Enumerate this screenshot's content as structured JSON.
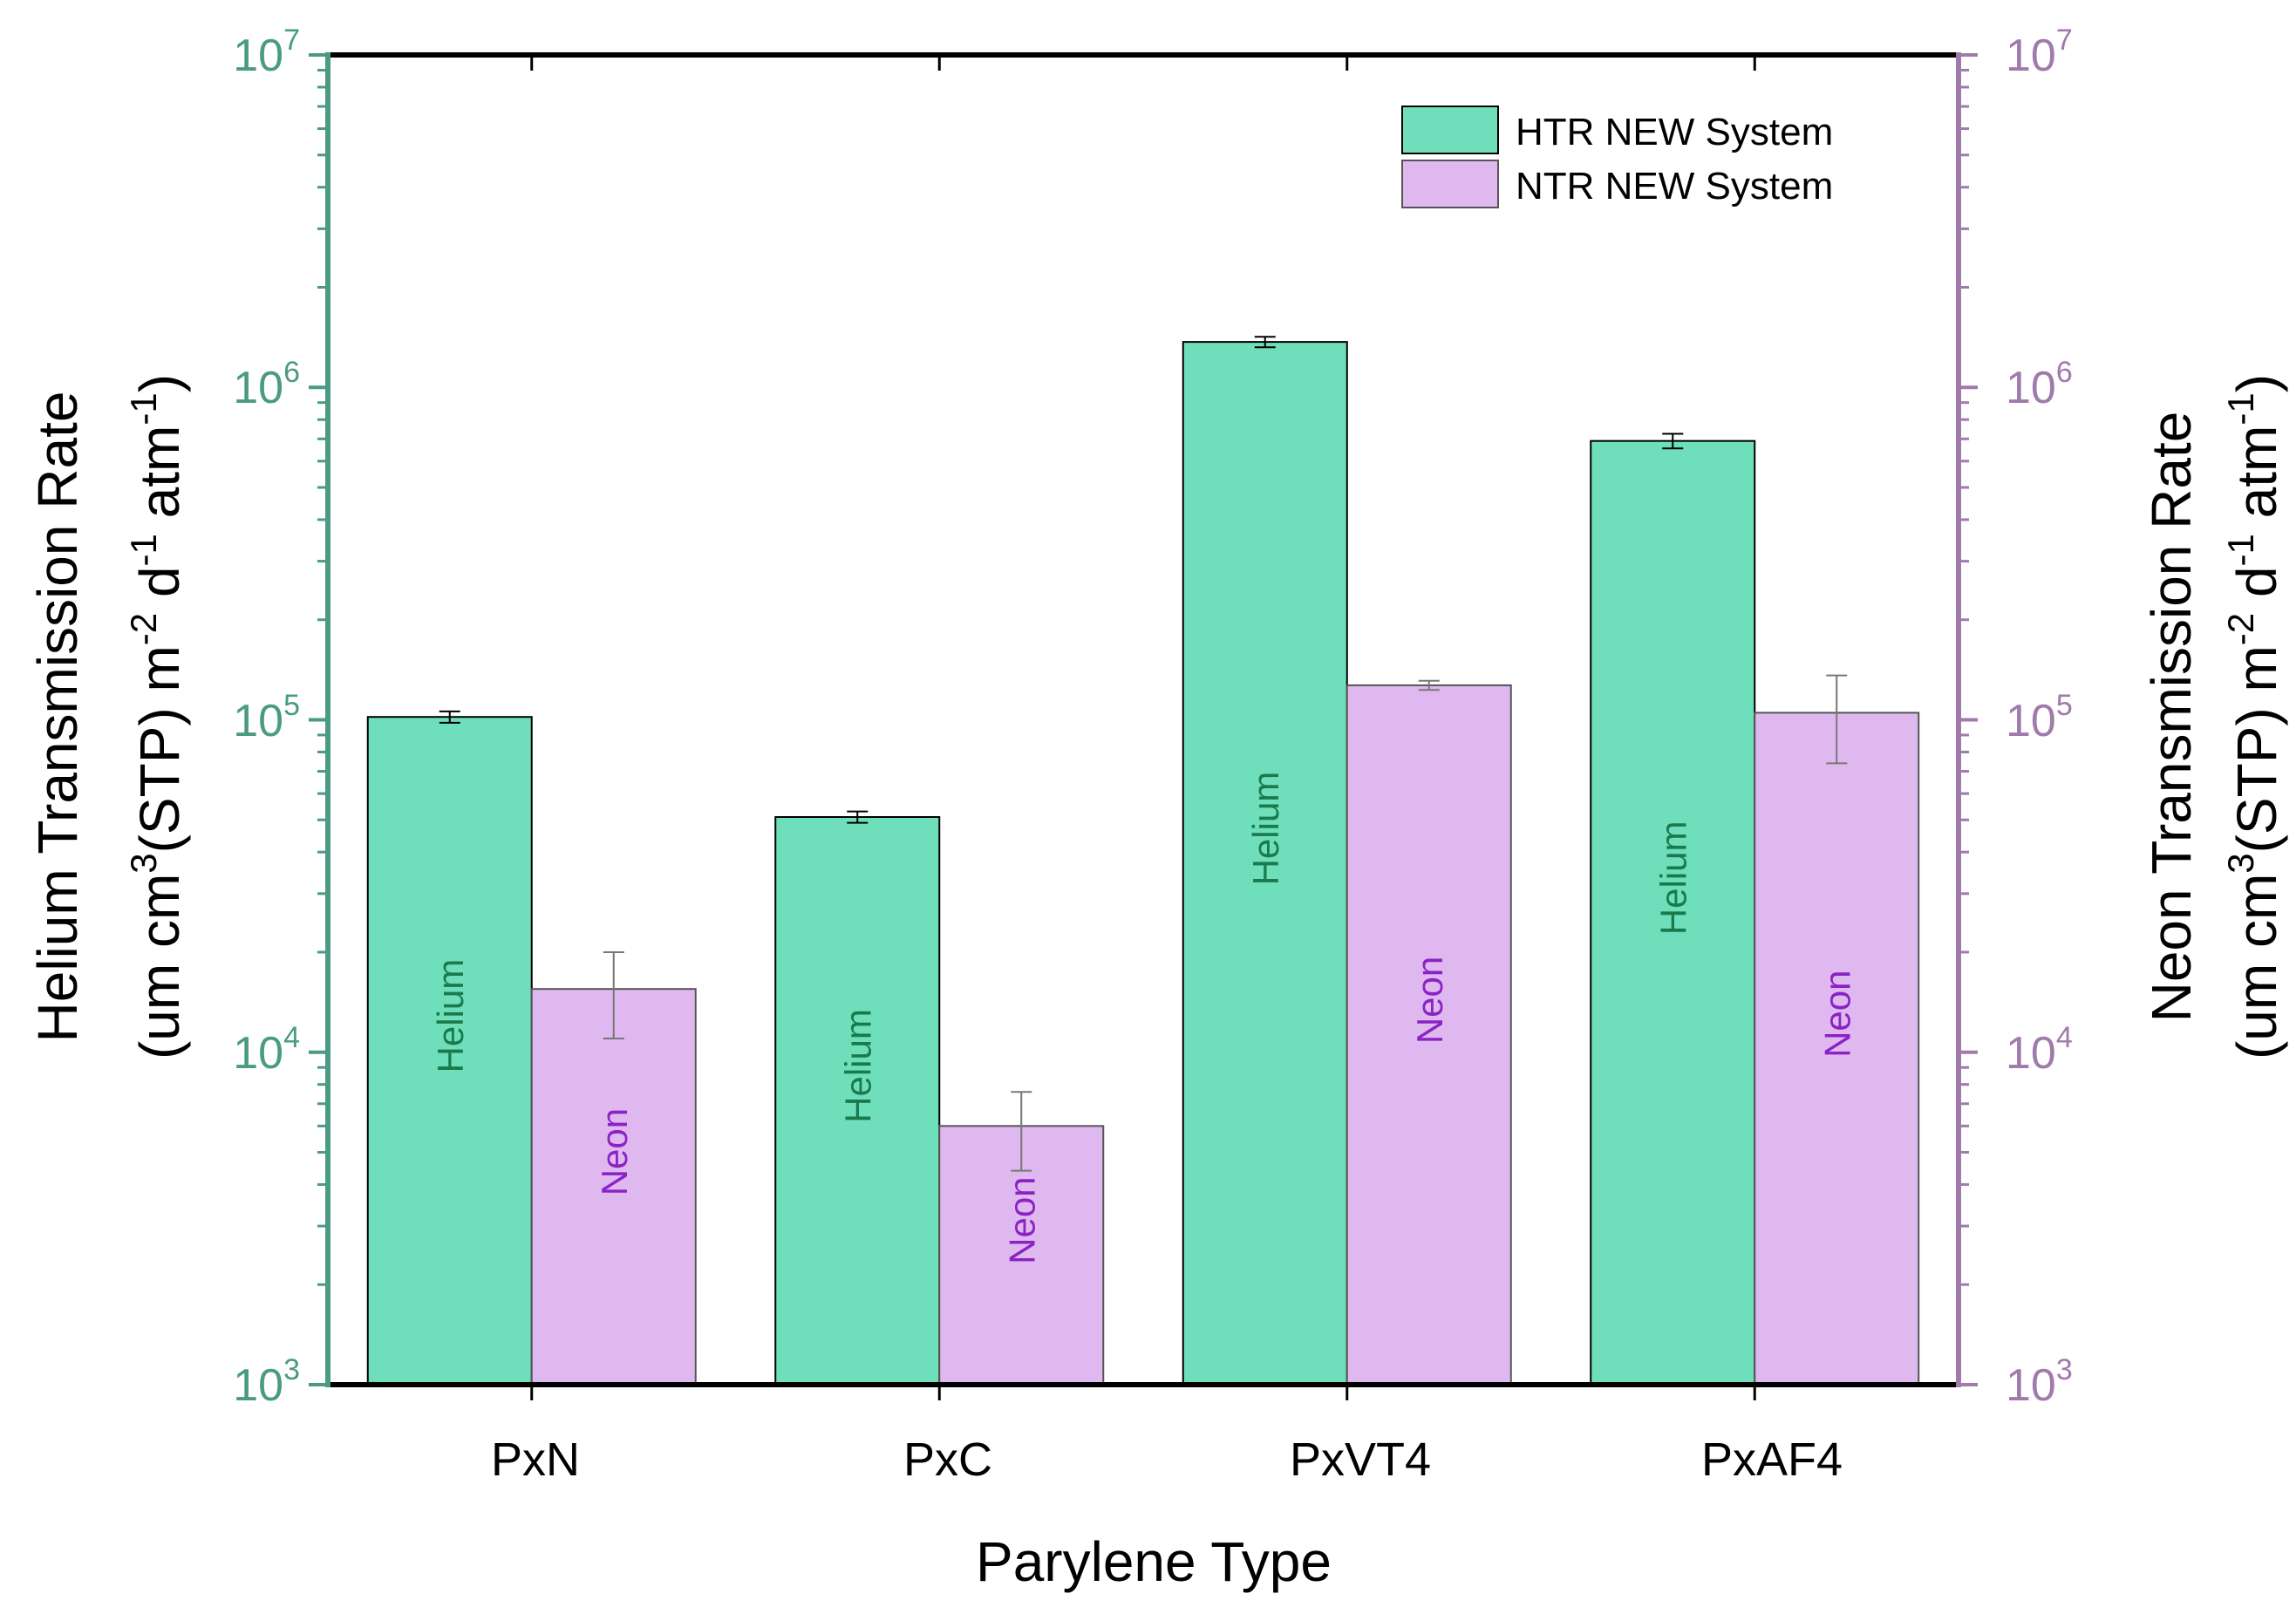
{
  "chart_data": {
    "type": "bar",
    "scale": "log",
    "xlabel": "Parylene Type",
    "ylabel_left": {
      "line1": "Helium Transmission Rate",
      "line2": {
        "a": "(um cm",
        "b": "3",
        "c": "(STP) m",
        "d": "-2",
        "e": " d",
        "f": "-1",
        "g": " atm",
        "h": "-1",
        "i": ")"
      }
    },
    "ylabel_right": {
      "line1": "Neon Transmission Rate",
      "line2": {
        "a": "(um cm",
        "b": "3",
        "c": "(STP) m",
        "d": "-2",
        "e": " d",
        "f": "-1",
        "g": " atm",
        "h": "-1",
        "i": ")"
      }
    },
    "ylim": [
      1000,
      10000000
    ],
    "y_ticks": [
      {
        "value": 1000,
        "base": "10",
        "exp": "3"
      },
      {
        "value": 10000,
        "base": "10",
        "exp": "4"
      },
      {
        "value": 100000,
        "base": "10",
        "exp": "5"
      },
      {
        "value": 1000000,
        "base": "10",
        "exp": "6"
      },
      {
        "value": 10000000,
        "base": "10",
        "exp": "7"
      }
    ],
    "categories": [
      "PxN",
      "PxC",
      "PxVT4",
      "PxAF4"
    ],
    "series": [
      {
        "name": "HTR NEW System",
        "in_bar_label": "Helium",
        "values": [
          102000,
          51000,
          1370000,
          690000
        ],
        "errors": [
          4000,
          2000,
          50000,
          35000
        ],
        "color": "#6fdfbb",
        "label_color": "#1a7a4c"
      },
      {
        "name": "NTR NEW System",
        "in_bar_label": "Neon",
        "values": [
          15500,
          6000,
          127000,
          105000
        ],
        "errors": [
          4500,
          1600,
          4000,
          31000
        ],
        "color": "#e0b8f0",
        "label_color": "#8a22c4"
      }
    ],
    "left_axis_color": "#4a9a84",
    "right_axis_color": "#a07aab",
    "legend_position": "top-right"
  }
}
